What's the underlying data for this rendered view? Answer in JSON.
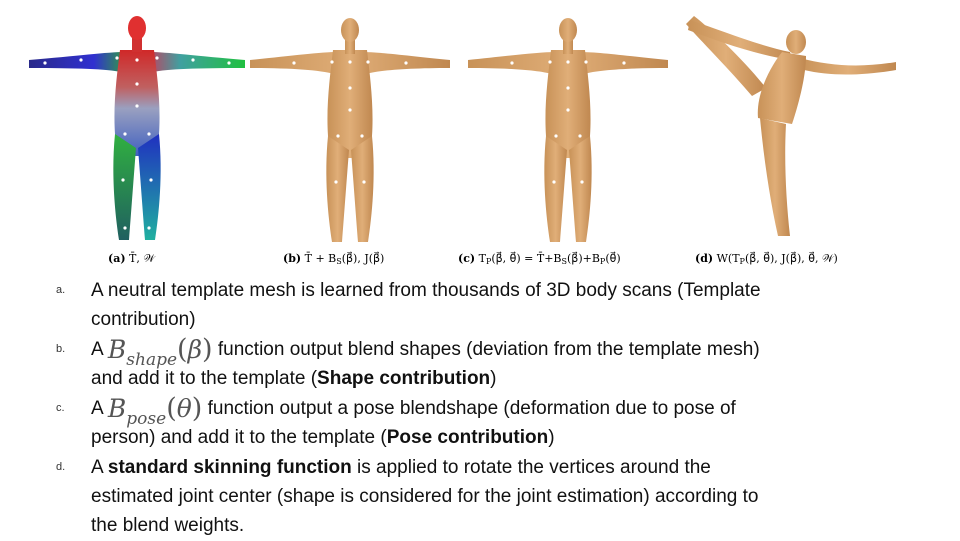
{
  "colors": {
    "skin": "#d9a56c",
    "skin_shade": "#b8844f",
    "joint_dot": "#ffffff"
  },
  "captions": [
    {
      "tag": "(a)",
      "math": "T̄, 𝒲"
    },
    {
      "tag": "(b)",
      "math": "T̄ + B_S(β⃗), J(β⃗)"
    },
    {
      "tag": "(c)",
      "math": "T_P(β⃗, θ⃗) = T̄ + B_S(β⃗) + B_P(θ⃗)"
    },
    {
      "tag": "(d)",
      "math": "W(T_P(β⃗, θ⃗), J(β⃗), θ⃗, 𝒲)"
    }
  ],
  "items": [
    {
      "marker": "a.",
      "lines": [
        "A neutral template mesh is learned from thousands of 3D body scans (Template",
        "contribution)"
      ]
    },
    {
      "marker": "b.",
      "lead": "A",
      "math_base": "B",
      "math_sub": "shape",
      "math_arg": "β",
      "line1_rest": "function output blend shapes (deviation from the template mesh)",
      "line2_pre": "and add it to the template (",
      "line2_bold": "Shape contribution",
      "line2_post": ")"
    },
    {
      "marker": "c.",
      "lead": "A",
      "math_base": "B",
      "math_sub": "pose",
      "math_arg": "θ",
      "line1_rest": "function output a pose blendshape (deformation due to pose of",
      "line2_pre": "person) and add it to the template (",
      "line2_bold": "Pose contribution",
      "line2_post": ")"
    },
    {
      "marker": "d.",
      "lead": "A",
      "bold": "standard skinning function",
      "line1_rest": "is applied to rotate the vertices around the",
      "line2": "estimated joint center (shape is considered for the joint estimation) according to",
      "line3": "the blend weights."
    }
  ]
}
